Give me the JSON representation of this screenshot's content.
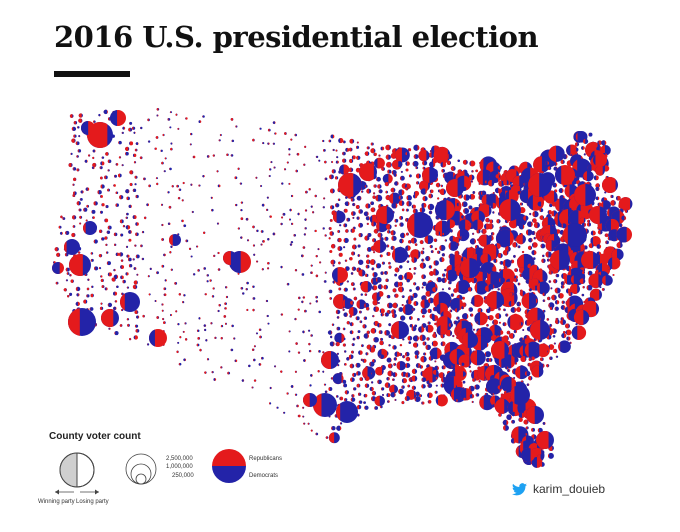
{
  "header": {
    "title": "2016 U.S. presidential election"
  },
  "colors": {
    "republican": "#e41a1c",
    "democrat": "#2323a8",
    "twitter": "#1da1f2",
    "legend_gray": "#cfcfcf"
  },
  "legend": {
    "heading": "County voter count",
    "winning_party_label": "Winning party",
    "losing_party_label": "Losing party",
    "size_values": [
      "2,500,000",
      "1,000,000",
      "250,000"
    ],
    "party_labels": {
      "republicans": "Republicans",
      "democrats": "Democrats"
    }
  },
  "credit": {
    "icon": "twitter-bird-icon",
    "handle": "karim_douieb"
  }
}
